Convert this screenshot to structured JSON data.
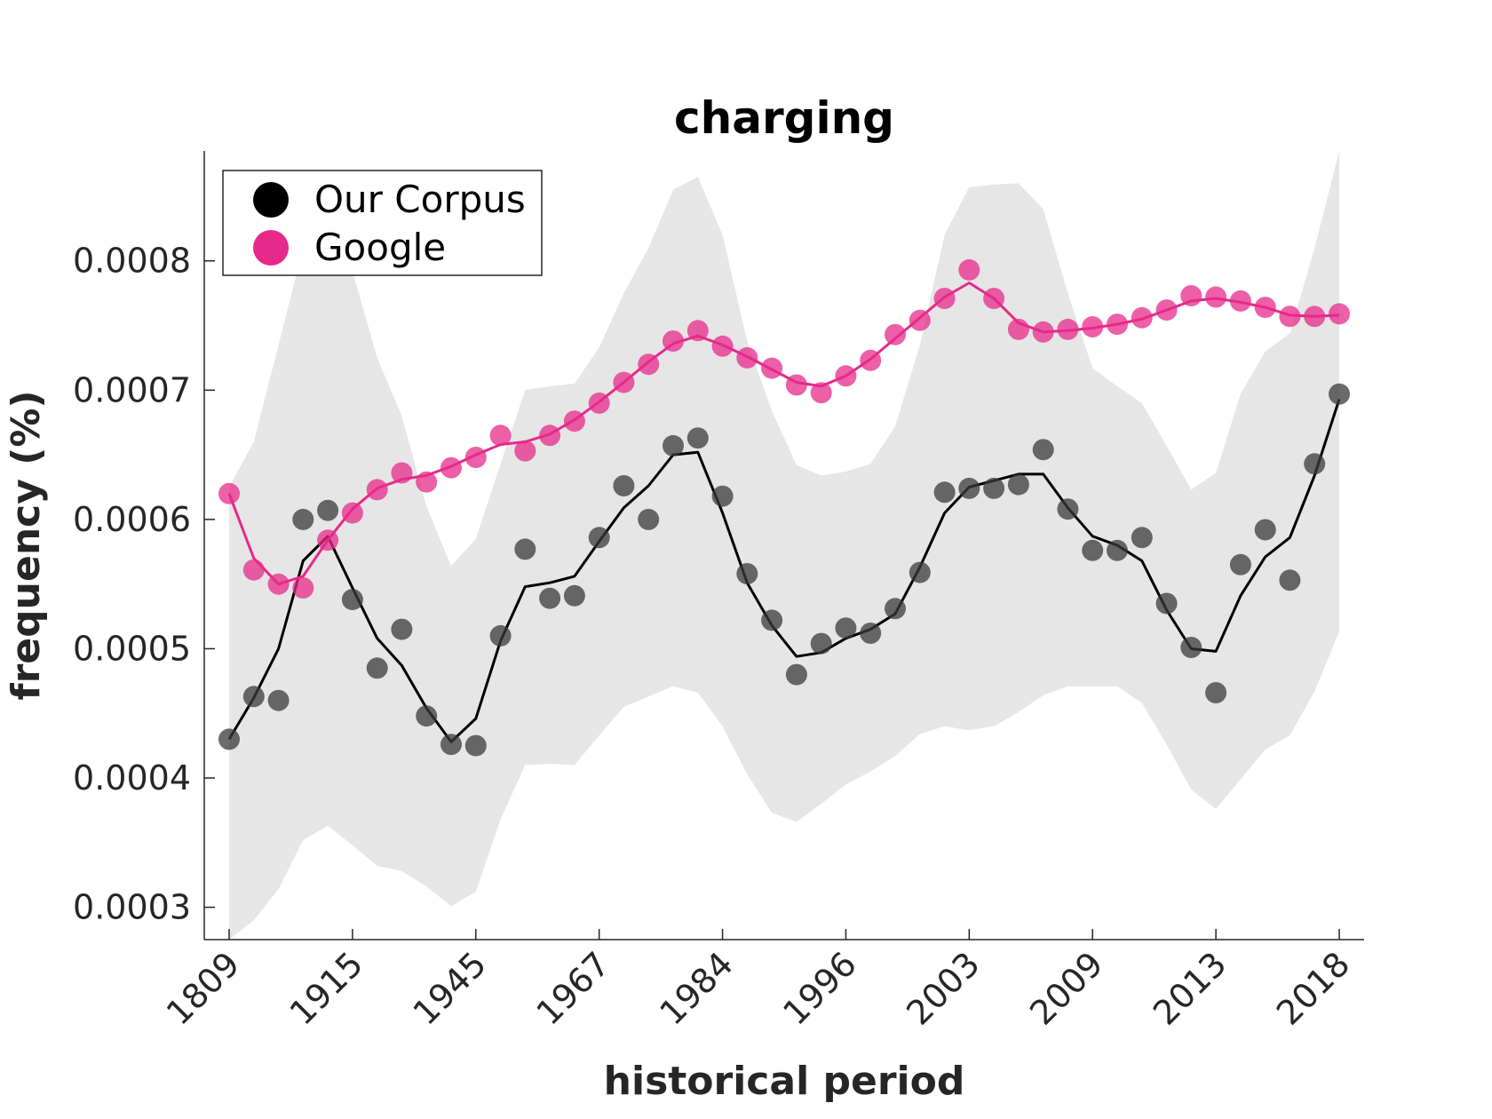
{
  "chart_data": {
    "type": "scatter",
    "title": "charging",
    "xlabel": "historical period",
    "ylabel": "frequency (%)",
    "x_tick_labels": [
      "1809",
      "1915",
      "1945",
      "1967",
      "1984",
      "1996",
      "2003",
      "2009",
      "2013",
      "2018"
    ],
    "y_ticks": [
      0.0003,
      0.0004,
      0.0005,
      0.0006,
      0.0007,
      0.0008
    ],
    "y_tick_labels": [
      "0.0003",
      "0.0004",
      "0.0005",
      "0.0006",
      "0.0007",
      "0.0008"
    ],
    "ylim": [
      0.000275,
      0.000885
    ],
    "legend_placement": "top-left",
    "grid": false,
    "series": [
      {
        "name": "Our Corpus",
        "color": "#3a3a3a",
        "line_color": "#000000",
        "points": [
          0.00043,
          0.000463,
          0.00046,
          0.0006,
          0.000607,
          0.000538,
          0.000485,
          0.000515,
          0.000448,
          0.000426,
          0.000425,
          0.00051,
          0.000577,
          0.000539,
          0.000541,
          0.000586,
          0.000626,
          0.0006,
          0.000657,
          0.000663,
          0.000618,
          0.000558,
          0.000522,
          0.00048,
          0.000504,
          0.000516,
          0.000512,
          0.000531,
          0.000559,
          0.000621,
          0.000624,
          0.000624,
          0.000627,
          0.000654,
          0.000608,
          0.000576,
          0.000576,
          0.000586,
          0.000535,
          0.000501,
          0.000466,
          0.000565,
          0.000592,
          0.000553,
          0.000643,
          0.000697
        ],
        "smoothed": [
          0.00043,
          0.000462,
          0.0005,
          0.000568,
          0.000587,
          0.000547,
          0.000508,
          0.000487,
          0.000454,
          0.000428,
          0.000446,
          0.000506,
          0.000548,
          0.000551,
          0.000556,
          0.000583,
          0.000609,
          0.000626,
          0.00065,
          0.000652,
          0.000605,
          0.000551,
          0.000518,
          0.000494,
          0.000497,
          0.000508,
          0.000515,
          0.000527,
          0.000563,
          0.000605,
          0.000625,
          0.00063,
          0.000635,
          0.000635,
          0.000609,
          0.000587,
          0.00058,
          0.000568,
          0.00053,
          0.0005,
          0.000498,
          0.000541,
          0.000571,
          0.000586,
          0.000634,
          0.000693
        ]
      },
      {
        "name": "Google",
        "color": "#e7298a",
        "line_color": "#e7298a",
        "points": [
          0.00062,
          0.000561,
          0.00055,
          0.000547,
          0.000584,
          0.000605,
          0.000623,
          0.000636,
          0.000629,
          0.00064,
          0.000648,
          0.000665,
          0.000653,
          0.000665,
          0.000676,
          0.00069,
          0.000706,
          0.00072,
          0.000738,
          0.000746,
          0.000734,
          0.000725,
          0.000717,
          0.000704,
          0.000698,
          0.000711,
          0.000723,
          0.000743,
          0.000754,
          0.000771,
          0.000793,
          0.000771,
          0.000747,
          0.000745,
          0.000747,
          0.000749,
          0.000751,
          0.000756,
          0.000762,
          0.000773,
          0.000772,
          0.000769,
          0.000764,
          0.000757,
          0.000757,
          0.000759
        ],
        "smoothed": [
          0.00062,
          0.00057,
          0.00055,
          0.000556,
          0.000584,
          0.000608,
          0.000624,
          0.000631,
          0.000634,
          0.000641,
          0.00065,
          0.000658,
          0.00066,
          0.000666,
          0.000677,
          0.000691,
          0.000706,
          0.000722,
          0.000736,
          0.000742,
          0.000735,
          0.000726,
          0.000716,
          0.000706,
          0.000703,
          0.000711,
          0.000724,
          0.00074,
          0.000756,
          0.000772,
          0.000783,
          0.000771,
          0.000752,
          0.000745,
          0.000746,
          0.000748,
          0.000751,
          0.000755,
          0.000762,
          0.000769,
          0.000771,
          0.000768,
          0.000764,
          0.000758,
          0.000757,
          0.000758
        ]
      }
    ],
    "band": {
      "color": "#e6e6e6",
      "upper": [
        0.000625,
        0.00066,
        0.000735,
        0.00081,
        0.000845,
        0.000792,
        0.000725,
        0.00068,
        0.00061,
        0.000564,
        0.000585,
        0.000643,
        0.0007,
        0.000703,
        0.000705,
        0.000733,
        0.000775,
        0.00081,
        0.000855,
        0.000865,
        0.00082,
        0.000738,
        0.000684,
        0.000642,
        0.000634,
        0.000637,
        0.000643,
        0.000672,
        0.000735,
        0.00082,
        0.000857,
        0.000859,
        0.00086,
        0.00084,
        0.000775,
        0.000717,
        0.000703,
        0.00069,
        0.000657,
        0.000623,
        0.000636,
        0.000697,
        0.00073,
        0.000744,
        0.00081,
        0.000885
      ],
      "lower": [
        0.000275,
        0.00029,
        0.000314,
        0.000352,
        0.000363,
        0.000348,
        0.000332,
        0.000328,
        0.000316,
        0.000301,
        0.000312,
        0.000368,
        0.00041,
        0.000411,
        0.00041,
        0.000433,
        0.000455,
        0.000463,
        0.000471,
        0.000466,
        0.00044,
        0.000403,
        0.000373,
        0.000366,
        0.00038,
        0.000395,
        0.000405,
        0.000417,
        0.000434,
        0.00044,
        0.000437,
        0.00044,
        0.000451,
        0.000464,
        0.000471,
        0.000471,
        0.000471,
        0.000458,
        0.000426,
        0.000391,
        0.000376,
        0.000399,
        0.000422,
        0.000433,
        0.000467,
        0.000513
      ]
    }
  }
}
